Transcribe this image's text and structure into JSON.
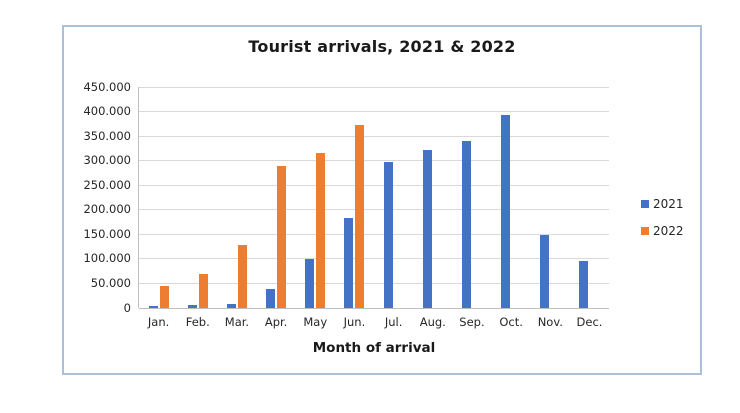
{
  "chart_data": {
    "type": "bar",
    "title": "Tourist arrivals, 2021 & 2022",
    "xlabel": "Month of arrival",
    "ylabel": "",
    "categories": [
      "Jan.",
      "Feb.",
      "Mar.",
      "Apr.",
      "May",
      "Jun.",
      "Jul.",
      "Aug.",
      "Sep.",
      "Oct.",
      "Nov.",
      "Dec."
    ],
    "series": [
      {
        "name": "2021",
        "color": "#4472C4",
        "values": [
          4000,
          6000,
          9000,
          38000,
          100000,
          183000,
          297000,
          322000,
          340000,
          392000,
          148000,
          96000
        ]
      },
      {
        "name": "2022",
        "color": "#ED7D31",
        "values": [
          45000,
          70000,
          128000,
          290000,
          316000,
          372000,
          null,
          null,
          null,
          null,
          null,
          null
        ]
      }
    ],
    "ylim": [
      0,
      450000
    ],
    "ytick_step": 50000,
    "ytick_labels": [
      "0",
      "50.000",
      "100.000",
      "150.000",
      "200.000",
      "250.000",
      "300.000",
      "350.000",
      "400.000",
      "450.000"
    ],
    "grid": "horizontal",
    "legend_position": "right",
    "gridline_color": "#D9D9D9",
    "axis_line_color": "#BFBFBF",
    "frame_border_color": "#AEBFDE",
    "text_color": "#262626"
  }
}
